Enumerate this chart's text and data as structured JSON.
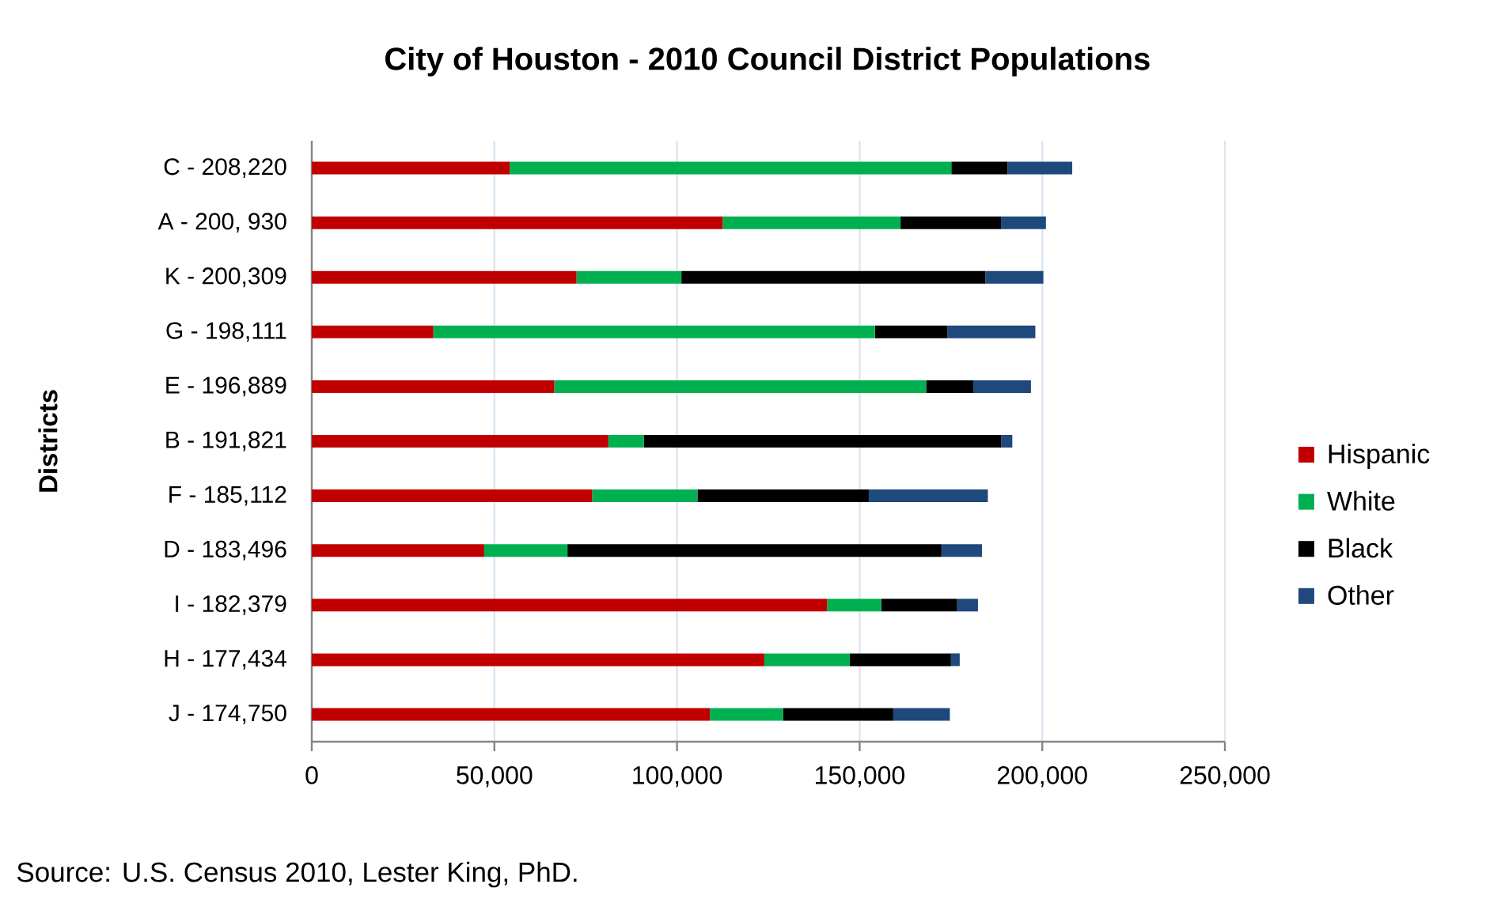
{
  "chart_data": {
    "type": "bar",
    "orientation": "horizontal",
    "stacked": true,
    "title": "City of Houston - 2010 Council District Populations",
    "ylabel": "Districts",
    "categories": [
      "C - 208,220",
      "A - 200, 930",
      "K - 200,309",
      "G - 198,111",
      "E - 196,889",
      "B - 191,821",
      "F - 185,112",
      "D - 183,496",
      "I - 182,379",
      "H - 177,434",
      "J - 174,750"
    ],
    "series": [
      {
        "name": "Hispanic",
        "color": "#c00000",
        "values": [
          54200,
          112500,
          72500,
          33300,
          66400,
          81200,
          76800,
          47200,
          141100,
          123900,
          109000
        ]
      },
      {
        "name": "White",
        "color": "#00b050",
        "values": [
          120900,
          48700,
          28700,
          120900,
          101800,
          9700,
          28800,
          22800,
          14800,
          23400,
          20000
        ]
      },
      {
        "name": "Black",
        "color": "#000000",
        "values": [
          15400,
          27500,
          83200,
          19800,
          12900,
          97900,
          46900,
          102400,
          20800,
          27700,
          30200
        ]
      },
      {
        "name": "Other",
        "color": "#1f497d",
        "values": [
          17700,
          12300,
          15900,
          24100,
          15800,
          3000,
          32600,
          11100,
          5700,
          2400,
          15500
        ]
      }
    ],
    "xlim": [
      0,
      250000
    ],
    "xticks": [
      0,
      {
        "value": 50000,
        "label": "50,000"
      },
      {
        "value": 100000,
        "label": "100,000"
      },
      {
        "value": 150000,
        "label": "150,000"
      },
      {
        "value": 200000,
        "label": "200,000"
      },
      {
        "value": 250000,
        "label": "250,000"
      }
    ],
    "grid": "x",
    "legend": "right",
    "annotations": [
      "Source: U.S. Census 2010, Lester King, PhD."
    ]
  }
}
